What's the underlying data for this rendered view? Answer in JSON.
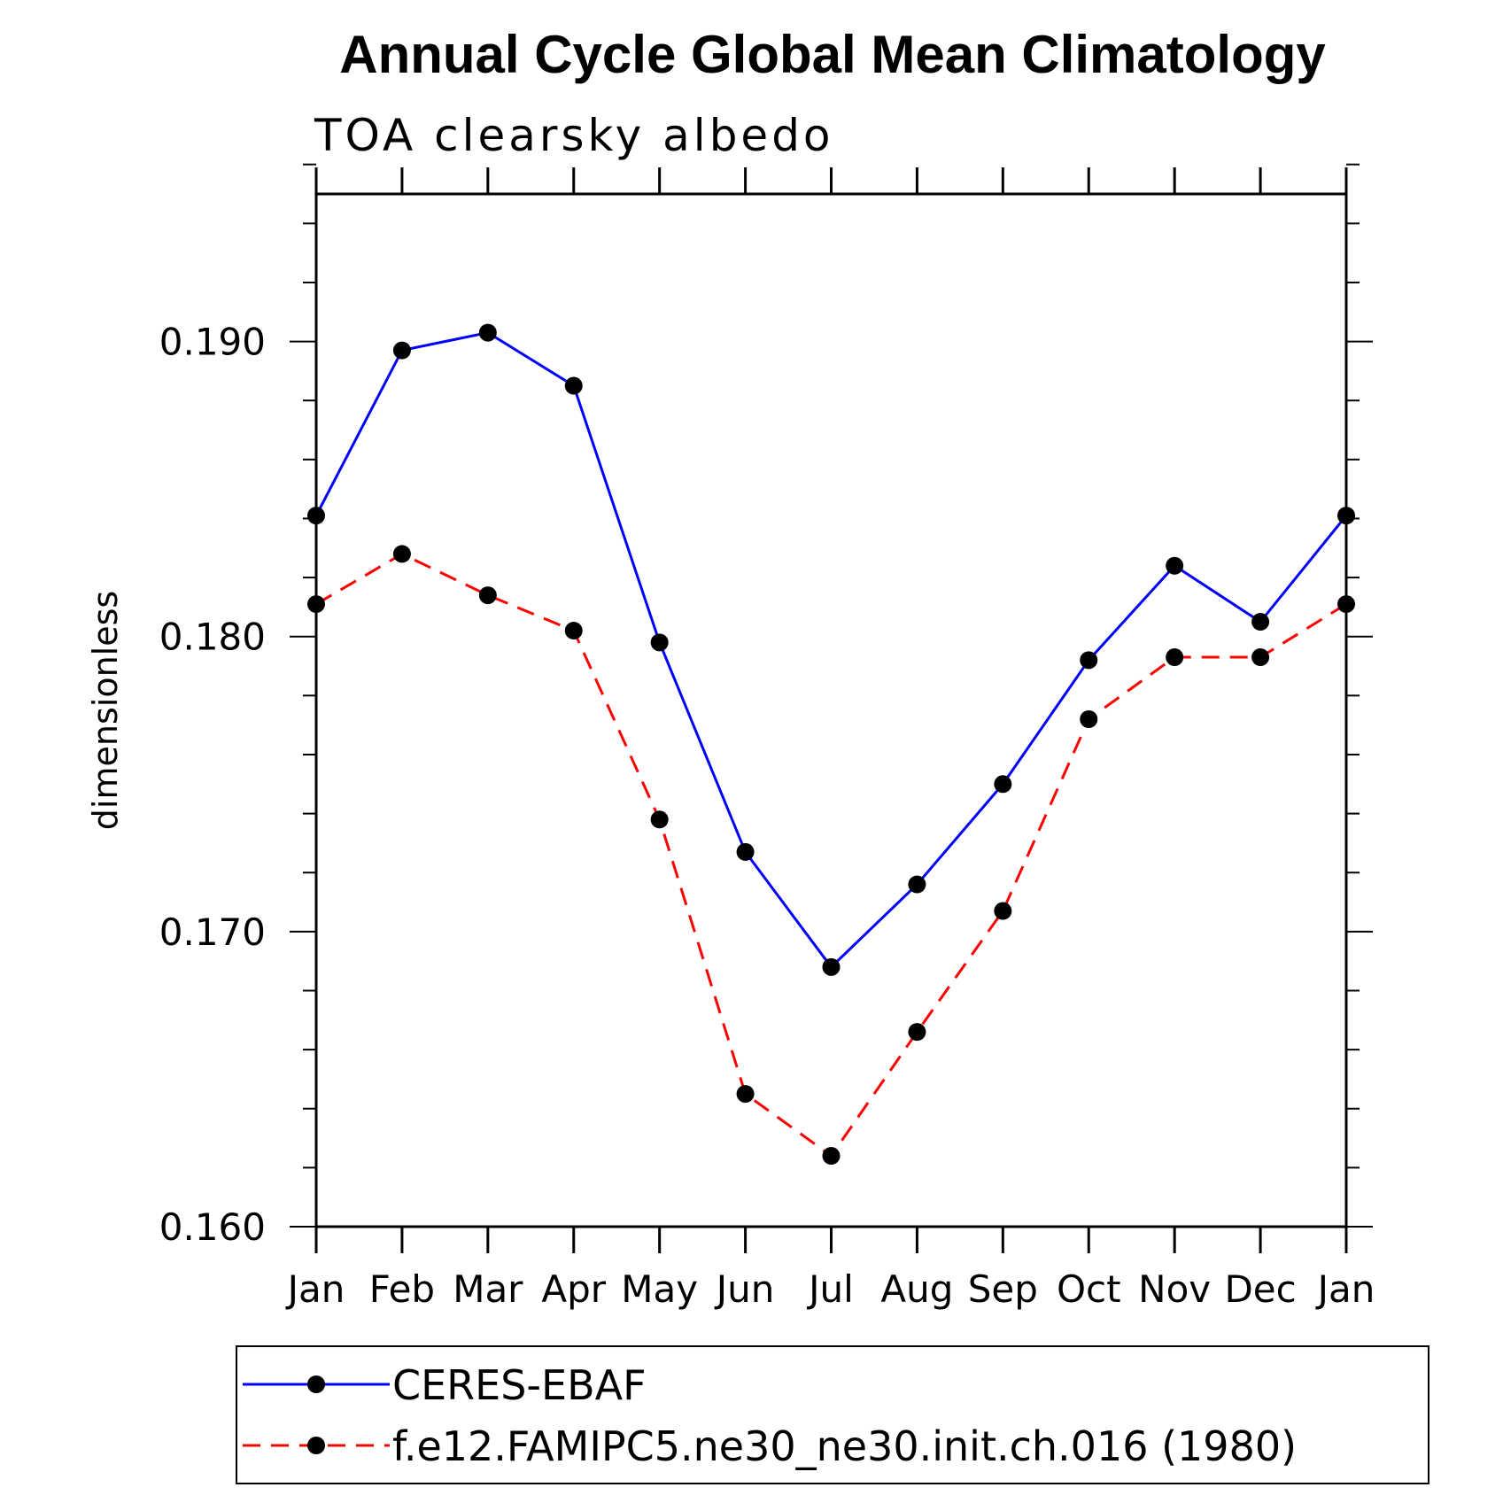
{
  "chart_data": {
    "type": "line",
    "title": "Annual Cycle Global Mean Climatology",
    "subtitle": "TOA clearsky albedo",
    "xlabel": "",
    "ylabel": "dimensionless",
    "categories": [
      "Jan",
      "Feb",
      "Mar",
      "Apr",
      "May",
      "Jun",
      "Jul",
      "Aug",
      "Sep",
      "Oct",
      "Nov",
      "Dec",
      "Jan"
    ],
    "ylim": [
      0.16,
      0.195
    ],
    "yticks": [
      "0.160",
      "0.170",
      "0.180",
      "0.190"
    ],
    "grid": false,
    "legend_position": "bottom",
    "series": [
      {
        "name": "CERES-EBAF",
        "color": "#0000ff",
        "style": "solid",
        "marker": "filled-circle",
        "values": [
          0.1841,
          0.1897,
          0.1903,
          0.1885,
          0.1798,
          0.1727,
          0.1688,
          0.1716,
          0.175,
          0.1792,
          0.1824,
          0.1805,
          0.1841
        ]
      },
      {
        "name": "f.e12.FAMIPC5.ne30_ne30.init.ch.016 (1980)",
        "color": "#ff0000",
        "style": "dashed",
        "marker": "filled-circle",
        "values": [
          0.1811,
          0.1828,
          0.1814,
          0.1802,
          0.1738,
          0.1645,
          0.1624,
          0.1666,
          0.1707,
          0.1772,
          0.1793,
          0.1793,
          0.1811
        ]
      }
    ]
  }
}
